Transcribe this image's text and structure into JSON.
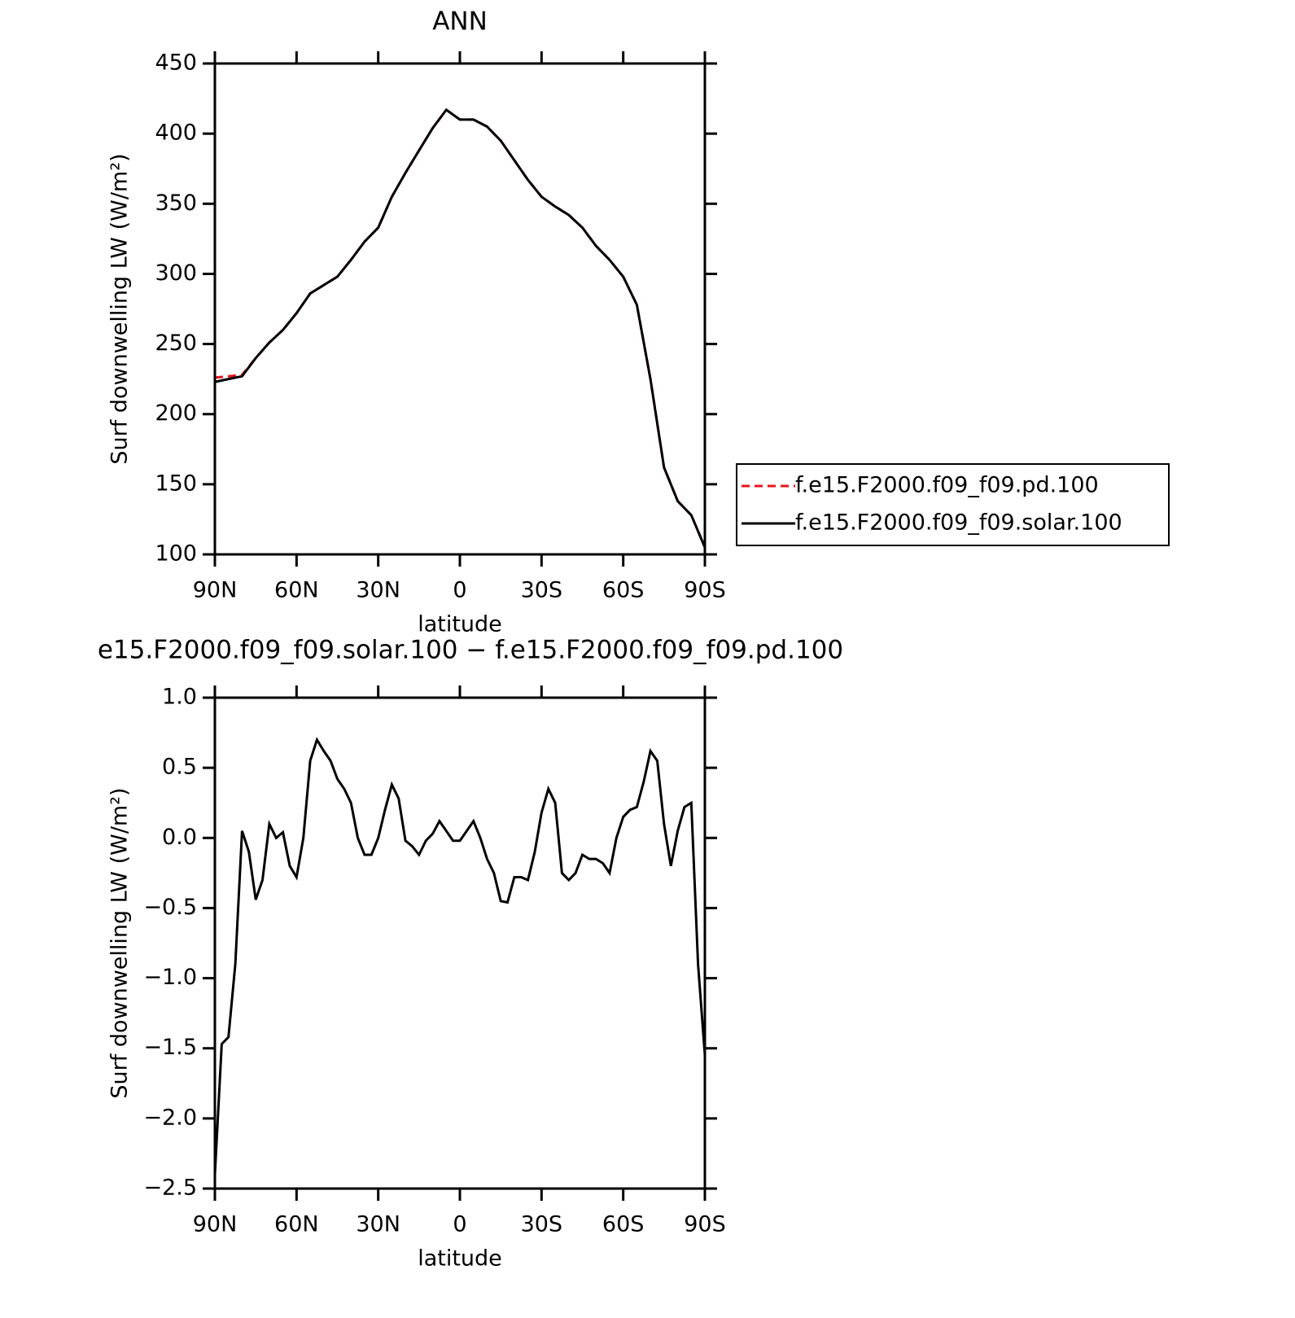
{
  "chart_data": [
    {
      "type": "line",
      "title": "ANN",
      "x_label": "latitude",
      "y_label": "Surf downwelling LW (W/m²)",
      "x": [
        90,
        85,
        80,
        75,
        70,
        65,
        60,
        55,
        50,
        45,
        40,
        35,
        30,
        25,
        20,
        15,
        10,
        5,
        0,
        -5,
        -10,
        -15,
        -20,
        -25,
        -30,
        -35,
        -40,
        -45,
        -50,
        -55,
        -60,
        -65,
        -70,
        -75,
        -80,
        -85,
        -90
      ],
      "series": [
        {
          "name": "f.e15.F2000.f09_f09.pd.100",
          "color": "#e8141c",
          "linestyle": "dashed",
          "values": [
            226,
            227,
            228,
            240,
            251,
            260,
            272,
            286,
            292,
            298,
            310,
            323,
            333,
            355,
            372,
            388,
            404,
            417,
            410,
            410,
            405,
            395,
            381,
            367,
            355,
            348,
            342,
            333,
            320,
            310,
            298,
            278,
            225,
            162,
            138,
            128,
            105
          ]
        },
        {
          "name": "f.e15.F2000.f09_f09.solar.100",
          "color": "#000000",
          "linestyle": "solid",
          "values": [
            223,
            225,
            227,
            240,
            251,
            260,
            272,
            286,
            292,
            298,
            310,
            323,
            333,
            355,
            372,
            388,
            404,
            417,
            410,
            410,
            405,
            395,
            381,
            367,
            355,
            348,
            342,
            333,
            320,
            310,
            298,
            278,
            225,
            162,
            138,
            128,
            105
          ]
        }
      ],
      "xlim": [
        90,
        -90
      ],
      "xticks": [
        {
          "value": 90,
          "label": "90N"
        },
        {
          "value": 60,
          "label": "60N"
        },
        {
          "value": 30,
          "label": "30N"
        },
        0,
        {
          "value": -30,
          "label": "30S"
        },
        {
          "value": -60,
          "label": "60S"
        },
        {
          "value": -90,
          "label": "90S"
        }
      ],
      "ylim": [
        100,
        450
      ],
      "yticks": [
        100,
        150,
        200,
        250,
        300,
        350,
        400,
        450
      ],
      "grid": false,
      "legend": "outside-right"
    },
    {
      "type": "line",
      "title": "e15.F2000.f09_f09.solar.100 − f.e15.F2000.f09_f09.pd.100",
      "x_label": "latitude",
      "y_label": "Surf downwelling LW (W/m²)",
      "x": [
        90,
        87.5,
        85,
        82.5,
        80,
        77.5,
        75,
        72.5,
        70,
        67.5,
        65,
        62.5,
        60,
        57.5,
        55,
        52.5,
        50,
        47.5,
        45,
        42.5,
        40,
        37.5,
        35,
        32.5,
        30,
        27.5,
        25,
        22.5,
        20,
        17.5,
        15,
        12.5,
        10,
        7.5,
        5,
        2.5,
        0,
        -2.5,
        -5,
        -7.5,
        -10,
        -12.5,
        -15,
        -17.5,
        -20,
        -22.5,
        -25,
        -27.5,
        -30,
        -32.5,
        -35,
        -37.5,
        -40,
        -42.5,
        -45,
        -47.5,
        -50,
        -52.5,
        -55,
        -57.5,
        -60,
        -62.5,
        -65,
        -67.5,
        -70,
        -72.5,
        -75,
        -77.5,
        -80,
        -82.5,
        -85,
        -87.5,
        -90
      ],
      "series": [
        {
          "name": null,
          "color": "#000000",
          "linestyle": "solid",
          "values": [
            -2.4,
            -1.47,
            -1.42,
            -0.9,
            0.05,
            -0.1,
            -0.44,
            -0.3,
            0.1,
            0.0,
            0.04,
            -0.2,
            -0.28,
            0.0,
            0.55,
            0.7,
            0.62,
            0.55,
            0.42,
            0.35,
            0.25,
            0.0,
            -0.12,
            -0.12,
            0.0,
            0.2,
            0.38,
            0.28,
            -0.02,
            -0.06,
            -0.12,
            -0.02,
            0.03,
            0.12,
            0.05,
            -0.02,
            -0.02,
            0.05,
            0.12,
            0.0,
            -0.15,
            -0.25,
            -0.45,
            -0.46,
            -0.28,
            -0.28,
            -0.3,
            -0.1,
            0.18,
            0.35,
            0.25,
            -0.25,
            -0.3,
            -0.25,
            -0.12,
            -0.15,
            -0.15,
            -0.18,
            -0.25,
            0.0,
            0.15,
            0.2,
            0.22,
            0.4,
            0.62,
            0.55,
            0.1,
            -0.2,
            0.05,
            0.22,
            0.25,
            -0.9,
            -1.55
          ]
        }
      ],
      "xlim": [
        90,
        -90
      ],
      "xticks": [
        {
          "value": 90,
          "label": "90N"
        },
        {
          "value": 60,
          "label": "60N"
        },
        {
          "value": 30,
          "label": "30N"
        },
        0,
        {
          "value": -30,
          "label": "30S"
        },
        {
          "value": -60,
          "label": "60S"
        },
        {
          "value": -90,
          "label": "90S"
        }
      ],
      "ylim": [
        -2.5,
        1.0
      ],
      "yticks": [
        {
          "value": -2.5,
          "label": "−2.5"
        },
        {
          "value": -2.0,
          "label": "−2.0"
        },
        {
          "value": -1.5,
          "label": "−1.5"
        },
        {
          "value": -1.0,
          "label": "−1.0"
        },
        {
          "value": -0.5,
          "label": "−0.5"
        },
        {
          "value": 0,
          "label": "0.0"
        },
        {
          "value": 0.5,
          "label": "0.5"
        },
        {
          "value": 1.0,
          "label": "1.0"
        }
      ],
      "grid": false
    }
  ]
}
